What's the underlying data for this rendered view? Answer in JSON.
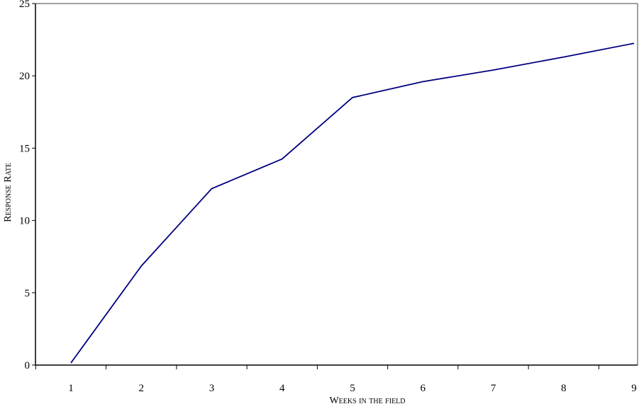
{
  "chart_data": {
    "type": "line",
    "title": "",
    "xlabel": "Weeks in the field",
    "ylabel": "Response Rate",
    "categories": [
      "1",
      "2",
      "3",
      "4",
      "5",
      "6",
      "7",
      "8",
      "9"
    ],
    "series": [
      {
        "values": [
          0.15,
          6.85,
          12.2,
          14.25,
          18.5,
          19.6,
          20.4,
          21.3,
          22.25
        ],
        "color": "#000080"
      }
    ],
    "yticks": [
      "0",
      "5",
      "10",
      "15",
      "20",
      "25"
    ],
    "ylim": [
      0,
      25
    ],
    "grid": false,
    "legend": "none"
  }
}
